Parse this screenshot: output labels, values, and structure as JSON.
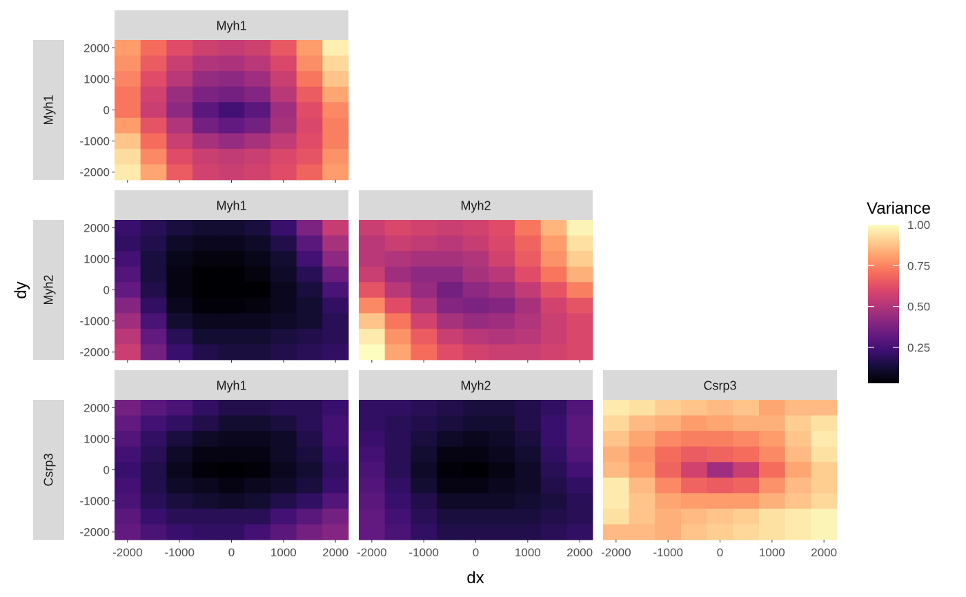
{
  "chart_data": {
    "type": "heatmap",
    "layout": "lower-triangular facet grid",
    "xlabel": "dx",
    "ylabel": "dy",
    "x": [
      -2000,
      -1500,
      -1000,
      -500,
      0,
      500,
      1000,
      1500,
      2000
    ],
    "y": [
      2000,
      1500,
      1000,
      500,
      0,
      -500,
      -1000,
      -1500,
      -2000
    ],
    "x_ticks": [
      "-2000",
      "-1000",
      "0",
      "1000",
      "2000"
    ],
    "y_ticks": [
      "2000",
      "1000",
      "0",
      "-1000",
      "-2000"
    ],
    "xlim": [
      -2250,
      2250
    ],
    "ylim": [
      -2250,
      2250
    ],
    "grid": true,
    "legend": {
      "title": "Variance",
      "position": "right",
      "colormap": "magma",
      "range": [
        0.03,
        1.0
      ],
      "ticks": [
        "0.25",
        "0.50",
        "0.75",
        "1.00"
      ],
      "tick_values": [
        0.25,
        0.5,
        0.75,
        1.0
      ]
    },
    "panels": [
      {
        "row_label": "Myh1",
        "col_label": "Myh1",
        "row": 0,
        "col": 0,
        "values": [
          [
            0.8,
            0.7,
            0.62,
            0.57,
            0.55,
            0.57,
            0.65,
            0.8,
            0.97
          ],
          [
            0.78,
            0.66,
            0.56,
            0.5,
            0.49,
            0.52,
            0.6,
            0.77,
            0.92
          ],
          [
            0.75,
            0.62,
            0.52,
            0.44,
            0.42,
            0.46,
            0.56,
            0.72,
            0.88
          ],
          [
            0.72,
            0.58,
            0.45,
            0.38,
            0.36,
            0.4,
            0.52,
            0.66,
            0.82
          ],
          [
            0.72,
            0.56,
            0.42,
            0.3,
            0.24,
            0.3,
            0.46,
            0.62,
            0.76
          ],
          [
            0.8,
            0.64,
            0.5,
            0.36,
            0.32,
            0.36,
            0.48,
            0.6,
            0.74
          ],
          [
            0.88,
            0.7,
            0.56,
            0.48,
            0.44,
            0.48,
            0.54,
            0.62,
            0.74
          ],
          [
            0.93,
            0.76,
            0.62,
            0.56,
            0.54,
            0.56,
            0.6,
            0.64,
            0.78
          ],
          [
            0.96,
            0.82,
            0.66,
            0.58,
            0.56,
            0.58,
            0.62,
            0.68,
            0.8
          ]
        ]
      },
      {
        "row_label": "Myh2",
        "col_label": "Myh1",
        "row": 1,
        "col": 0,
        "values": [
          [
            0.22,
            0.18,
            0.14,
            0.12,
            0.12,
            0.14,
            0.22,
            0.38,
            0.55
          ],
          [
            0.2,
            0.16,
            0.1,
            0.08,
            0.08,
            0.1,
            0.16,
            0.3,
            0.48
          ],
          [
            0.24,
            0.14,
            0.07,
            0.05,
            0.05,
            0.07,
            0.12,
            0.24,
            0.42
          ],
          [
            0.28,
            0.14,
            0.06,
            0.03,
            0.03,
            0.05,
            0.1,
            0.18,
            0.34
          ],
          [
            0.32,
            0.16,
            0.06,
            0.02,
            0.01,
            0.03,
            0.08,
            0.14,
            0.26
          ],
          [
            0.4,
            0.2,
            0.08,
            0.04,
            0.04,
            0.05,
            0.08,
            0.12,
            0.2
          ],
          [
            0.46,
            0.26,
            0.12,
            0.08,
            0.08,
            0.08,
            0.1,
            0.12,
            0.18
          ],
          [
            0.52,
            0.32,
            0.18,
            0.12,
            0.12,
            0.12,
            0.14,
            0.16,
            0.18
          ],
          [
            0.56,
            0.36,
            0.22,
            0.16,
            0.14,
            0.14,
            0.16,
            0.18,
            0.2
          ]
        ]
      },
      {
        "row_label": "Myh2",
        "col_label": "Myh2",
        "row": 1,
        "col": 1,
        "values": [
          [
            0.56,
            0.6,
            0.58,
            0.56,
            0.58,
            0.62,
            0.72,
            0.85,
            0.98
          ],
          [
            0.52,
            0.56,
            0.54,
            0.52,
            0.55,
            0.6,
            0.68,
            0.8,
            0.94
          ],
          [
            0.52,
            0.5,
            0.48,
            0.48,
            0.5,
            0.58,
            0.66,
            0.78,
            0.9
          ],
          [
            0.56,
            0.46,
            0.42,
            0.42,
            0.48,
            0.52,
            0.62,
            0.72,
            0.84
          ],
          [
            0.64,
            0.52,
            0.44,
            0.36,
            0.42,
            0.46,
            0.54,
            0.64,
            0.74
          ],
          [
            0.76,
            0.62,
            0.5,
            0.4,
            0.38,
            0.4,
            0.48,
            0.58,
            0.64
          ],
          [
            0.88,
            0.72,
            0.58,
            0.48,
            0.44,
            0.46,
            0.5,
            0.56,
            0.6
          ],
          [
            0.96,
            0.78,
            0.66,
            0.56,
            0.52,
            0.5,
            0.52,
            0.56,
            0.6
          ],
          [
            1.0,
            0.82,
            0.7,
            0.62,
            0.58,
            0.56,
            0.56,
            0.58,
            0.6
          ]
        ]
      },
      {
        "row_label": "Csrp3",
        "col_label": "Myh1",
        "row": 2,
        "col": 0,
        "values": [
          [
            0.36,
            0.3,
            0.26,
            0.2,
            0.16,
            0.16,
            0.18,
            0.18,
            0.22
          ],
          [
            0.32,
            0.24,
            0.2,
            0.16,
            0.12,
            0.12,
            0.14,
            0.18,
            0.24
          ],
          [
            0.28,
            0.2,
            0.14,
            0.1,
            0.08,
            0.08,
            0.1,
            0.16,
            0.24
          ],
          [
            0.24,
            0.18,
            0.1,
            0.06,
            0.06,
            0.06,
            0.1,
            0.14,
            0.22
          ],
          [
            0.22,
            0.16,
            0.08,
            0.04,
            0.01,
            0.04,
            0.08,
            0.12,
            0.2
          ],
          [
            0.24,
            0.16,
            0.1,
            0.08,
            0.06,
            0.08,
            0.1,
            0.14,
            0.22
          ],
          [
            0.26,
            0.18,
            0.14,
            0.12,
            0.1,
            0.12,
            0.16,
            0.2,
            0.28
          ],
          [
            0.3,
            0.22,
            0.18,
            0.18,
            0.18,
            0.18,
            0.24,
            0.3,
            0.36
          ],
          [
            0.32,
            0.26,
            0.22,
            0.2,
            0.2,
            0.24,
            0.3,
            0.36,
            0.4
          ]
        ]
      },
      {
        "row_label": "Csrp3",
        "col_label": "Myh2",
        "row": 2,
        "col": 1,
        "values": [
          [
            0.2,
            0.2,
            0.18,
            0.16,
            0.14,
            0.14,
            0.16,
            0.2,
            0.28
          ],
          [
            0.2,
            0.18,
            0.16,
            0.14,
            0.12,
            0.12,
            0.16,
            0.22,
            0.3
          ],
          [
            0.22,
            0.18,
            0.14,
            0.1,
            0.08,
            0.1,
            0.14,
            0.22,
            0.3
          ],
          [
            0.24,
            0.18,
            0.12,
            0.06,
            0.06,
            0.08,
            0.12,
            0.2,
            0.28
          ],
          [
            0.26,
            0.18,
            0.1,
            0.04,
            0.03,
            0.06,
            0.1,
            0.18,
            0.24
          ],
          [
            0.28,
            0.2,
            0.12,
            0.06,
            0.06,
            0.08,
            0.1,
            0.16,
            0.2
          ],
          [
            0.3,
            0.22,
            0.16,
            0.1,
            0.1,
            0.1,
            0.12,
            0.14,
            0.18
          ],
          [
            0.32,
            0.24,
            0.18,
            0.14,
            0.14,
            0.14,
            0.14,
            0.16,
            0.18
          ],
          [
            0.32,
            0.26,
            0.2,
            0.16,
            0.16,
            0.16,
            0.16,
            0.18,
            0.2
          ]
        ]
      },
      {
        "row_label": "Csrp3",
        "col_label": "Csrp3",
        "row": 2,
        "col": 2,
        "values": [
          [
            0.96,
            0.94,
            0.9,
            0.88,
            0.86,
            0.88,
            0.82,
            0.86,
            0.86
          ],
          [
            0.92,
            0.86,
            0.84,
            0.8,
            0.82,
            0.84,
            0.84,
            0.9,
            0.94
          ],
          [
            0.88,
            0.82,
            0.76,
            0.74,
            0.74,
            0.76,
            0.8,
            0.88,
            0.96
          ],
          [
            0.84,
            0.78,
            0.7,
            0.66,
            0.68,
            0.7,
            0.76,
            0.86,
            0.94
          ],
          [
            0.86,
            0.8,
            0.68,
            0.58,
            0.46,
            0.56,
            0.7,
            0.82,
            0.9
          ],
          [
            0.96,
            0.86,
            0.76,
            0.68,
            0.66,
            0.68,
            0.78,
            0.86,
            0.9
          ],
          [
            0.96,
            0.88,
            0.82,
            0.8,
            0.8,
            0.8,
            0.84,
            0.88,
            0.92
          ],
          [
            0.94,
            0.88,
            0.84,
            0.86,
            0.88,
            0.9,
            0.94,
            0.96,
            0.98
          ],
          [
            0.86,
            0.86,
            0.84,
            0.88,
            0.9,
            0.92,
            0.94,
            0.96,
            0.98
          ]
        ]
      }
    ]
  }
}
